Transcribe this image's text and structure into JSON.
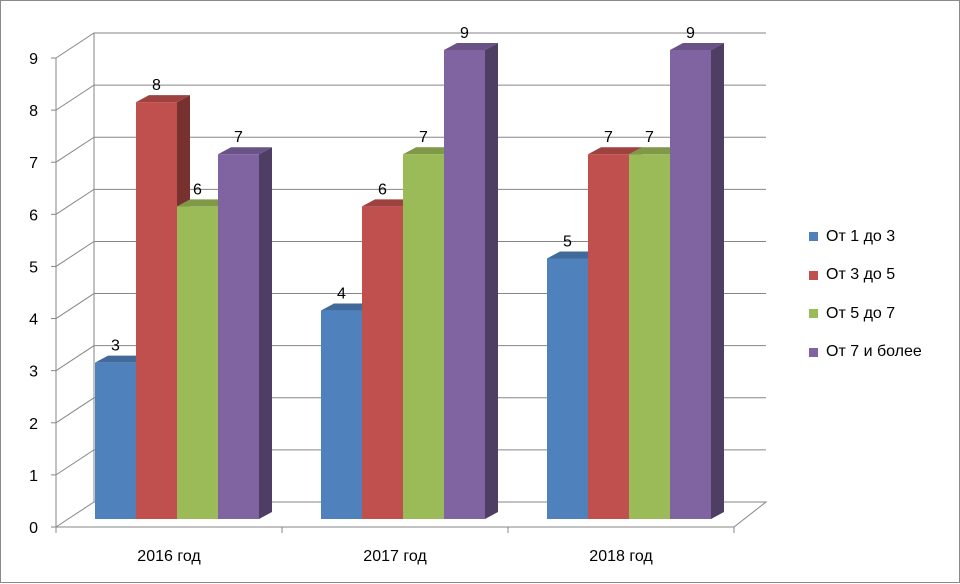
{
  "chart_data": {
    "type": "bar",
    "categories": [
      "2016 год",
      "2017 год",
      "2018 год"
    ],
    "series": [
      {
        "name": "От 1 до 3",
        "values": [
          3,
          4,
          5
        ],
        "color": "#4F81BD"
      },
      {
        "name": "От 3 до 5",
        "values": [
          8,
          6,
          7
        ],
        "color": "#C0504D"
      },
      {
        "name": "От 5 до 7",
        "values": [
          6,
          7,
          7
        ],
        "color": "#9BBB59"
      },
      {
        "name": "От 7 и более",
        "values": [
          7,
          9,
          9
        ],
        "color": "#8064A2"
      }
    ],
    "ylim": [
      0,
      9
    ],
    "yticks": [
      "0",
      "1",
      "2",
      "3",
      "4",
      "5",
      "6",
      "7",
      "8",
      "9"
    ],
    "grid": true,
    "legend_position": "right",
    "data_labels": true,
    "style": "3d-clustered-column"
  }
}
